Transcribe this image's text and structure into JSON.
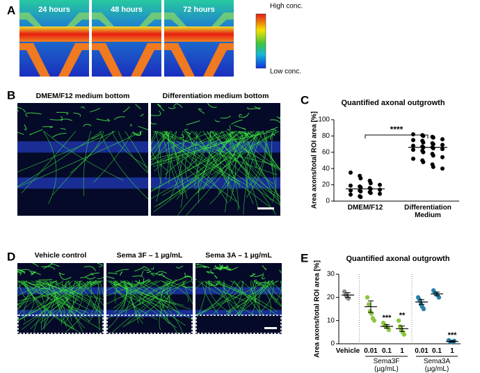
{
  "panel_labels": [
    "A",
    "B",
    "C",
    "D",
    "E"
  ],
  "panel_a": {
    "time_labels": [
      "24 hours",
      "48 hours",
      "72 hours"
    ],
    "colorbar_high": "High conc.",
    "colorbar_low": "Low conc."
  },
  "panel_b": {
    "titles": [
      "DMEM/F12 medium bottom",
      "Differentiation medium bottom"
    ]
  },
  "panel_d": {
    "titles": [
      "Vehicle control",
      "Sema 3F – 1 µg/mL",
      "Sema 3A – 1 µg/mL"
    ]
  },
  "chart_data": [
    {
      "type": "scatter",
      "title": "Quantified axonal outgrowth",
      "y_label": "Area axons/total ROI area [%]",
      "categories": [
        "DMEM/F12",
        "Differentiation Medium"
      ],
      "groups": [
        {
          "color": "#000000",
          "mean": 15,
          "values": [
            35,
            31,
            28,
            25,
            22,
            20,
            19,
            18,
            17,
            16,
            15,
            14,
            13,
            13,
            12,
            11,
            10,
            9,
            8,
            6,
            5
          ]
        },
        {
          "color": "#000000",
          "mean": 66,
          "values": [
            82,
            81,
            80,
            79,
            78,
            76,
            75,
            74,
            72,
            71,
            70,
            69,
            68,
            67,
            66,
            66,
            65,
            64,
            63,
            62,
            60,
            58,
            56,
            54,
            52,
            50,
            48,
            45,
            42,
            40
          ]
        }
      ],
      "significance": "****",
      "ylim": [
        0,
        100
      ],
      "yticks": [
        0,
        20,
        40,
        60,
        80,
        100
      ]
    },
    {
      "type": "scatter",
      "title": "Quantified axonal outgrowth",
      "y_label": "Area axons/total ROI area [%]",
      "categories": [
        "Vehicle",
        "0.01",
        "0.1",
        "1",
        "0.01",
        "0.1",
        "1"
      ],
      "x_group_labels": [
        "Sema3F (µg/mL)",
        "Sema3A (µg/mL)"
      ],
      "groups": [
        {
          "color": "#8c8c8c",
          "mean": 21,
          "error": 1,
          "values": [
            22.5,
            21,
            20,
            19.5
          ]
        },
        {
          "color": "#8dc63f",
          "mean": 16,
          "error": 2.5,
          "values": [
            20,
            17,
            14,
            13,
            11,
            10
          ]
        },
        {
          "color": "#8dc63f",
          "mean": 7.5,
          "error": 0.8,
          "values": [
            9,
            8,
            7.5,
            7,
            6
          ],
          "significance": "***"
        },
        {
          "color": "#8dc63f",
          "mean": 6.5,
          "error": 1.2,
          "values": [
            10,
            7.5,
            6,
            5,
            4
          ],
          "significance": "**"
        },
        {
          "color": "#2a7fa8",
          "mean": 18,
          "error": 1,
          "values": [
            20,
            19,
            17,
            16,
            15
          ]
        },
        {
          "color": "#2a7fa8",
          "mean": 21.5,
          "error": 0.8,
          "values": [
            23,
            22,
            21.5,
            21,
            20
          ]
        },
        {
          "color": "#2a7fa8",
          "mean": 1,
          "error": 0.3,
          "values": [
            1.5,
            1,
            0.8,
            0.6,
            1.2
          ],
          "significance": "***"
        }
      ],
      "ylim": [
        0,
        30
      ],
      "yticks": [
        0,
        10,
        20,
        30
      ]
    }
  ]
}
